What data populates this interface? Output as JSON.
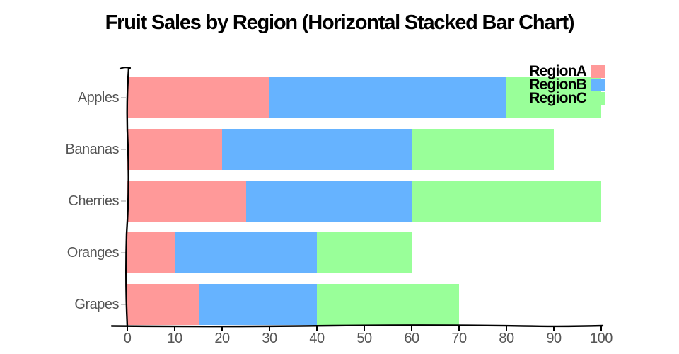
{
  "title": "Fruit Sales by Region (Horizontal Stacked Bar Chart)",
  "chart_data": {
    "type": "bar",
    "orientation": "horizontal",
    "stacked": true,
    "style": "xkcd-sketch",
    "title": "Fruit Sales by Region (Horizontal Stacked Bar Chart)",
    "categories": [
      "Apples",
      "Bananas",
      "Cherries",
      "Oranges",
      "Grapes"
    ],
    "series": [
      {
        "name": "RegionA",
        "color": "#ff9999",
        "values": [
          30,
          20,
          25,
          10,
          15
        ]
      },
      {
        "name": "RegionB",
        "color": "#66b3ff",
        "values": [
          50,
          40,
          35,
          30,
          25
        ]
      },
      {
        "name": "RegionC",
        "color": "#99ff99",
        "values": [
          20,
          30,
          40,
          20,
          30
        ]
      }
    ],
    "stack_totals": [
      100,
      90,
      100,
      60,
      70
    ],
    "xlabel": "",
    "ylabel": "",
    "xlim": [
      0,
      100
    ],
    "xticks": [
      0,
      10,
      20,
      30,
      40,
      50,
      60,
      70,
      80,
      90,
      100
    ],
    "grid": false,
    "legend_position": "upper right",
    "legend_entries": [
      "RegionA",
      "RegionB",
      "RegionC"
    ]
  },
  "colors": {
    "background": "#ffffff",
    "axis_line": "#000000",
    "tick_label": "#555555",
    "title_text": "#000000",
    "y_tick_mark": "#cccccc"
  }
}
